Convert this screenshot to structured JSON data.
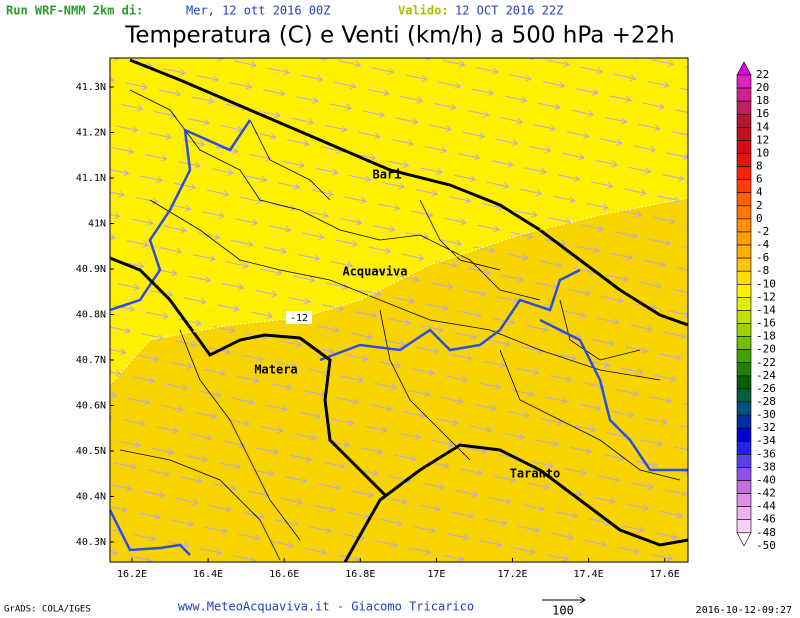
{
  "header": {
    "run_label": "Run WRF-NMM 2km di:",
    "run_date": "Mer, 12 ott 2016 00Z",
    "valid_label": "Valido:",
    "valid_date": "12 OCT 2016 22Z",
    "title": "Temperatura (C) e Venti (km/h) a 500 hPa +22h"
  },
  "map": {
    "lat_labels": [
      "41.3N",
      "41.2N",
      "41.1N",
      "41N",
      "40.9N",
      "40.8N",
      "40.7N",
      "40.6N",
      "40.5N",
      "40.4N",
      "40.3N"
    ],
    "lon_labels": [
      "16.2E",
      "16.4E",
      "16.6E",
      "16.8E",
      "17E",
      "17.2E",
      "17.4E",
      "17.6E"
    ],
    "places": [
      "Bari",
      "Acquaviva",
      "Matera",
      "Taranto"
    ],
    "contour_label": "-12"
  },
  "colorbar": {
    "labels": [
      "22",
      "20",
      "18",
      "16",
      "14",
      "12",
      "10",
      "8",
      "6",
      "4",
      "2",
      "0",
      "-2",
      "-4",
      "-6",
      "-8",
      "-10",
      "-12",
      "-14",
      "-16",
      "-18",
      "-20",
      "-22",
      "-24",
      "-26",
      "-28",
      "-30",
      "-32",
      "-34",
      "-36",
      "-38",
      "-40",
      "-42",
      "-44",
      "-46",
      "-48",
      "-50"
    ],
    "colors": [
      "#e000e0",
      "#e020c0",
      "#d02090",
      "#c02060",
      "#b01830",
      "#c01020",
      "#d01010",
      "#f01010",
      "#ff2000",
      "#ff4000",
      "#ff6000",
      "#ff7800",
      "#ff9000",
      "#ffa000",
      "#ffb000",
      "#ffc800",
      "#ffe000",
      "#fff000",
      "#e0f000",
      "#c0e000",
      "#a0d000",
      "#70c000",
      "#40a000",
      "#208000",
      "#006000",
      "#006040",
      "#005080",
      "#0030a0",
      "#0000d0",
      "#2020f0",
      "#6040e0",
      "#9050e0",
      "#c070e0",
      "#e090e8",
      "#f0b0f0",
      "#f8d0f8",
      "#ffffff"
    ]
  },
  "footer": {
    "software": "GrADS: COLA/IGES",
    "credit": "www.MeteoAcquaviva.it - Giacomo Tricarico",
    "wind_scale": "100",
    "timestamp": "2016-10-12-09:27"
  }
}
